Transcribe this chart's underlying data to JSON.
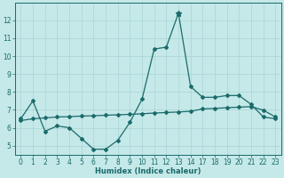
{
  "xlabel": "Humidex (Indice chaleur)",
  "bg_color": "#c5e8e8",
  "line_color": "#1a6b6b",
  "x_labels": [
    0,
    1,
    2,
    3,
    4,
    5,
    6,
    7,
    8,
    9,
    10,
    11,
    12,
    13,
    14,
    17,
    18,
    19,
    20,
    21,
    22,
    23
  ],
  "y_main": [
    6.5,
    7.5,
    5.8,
    6.1,
    6.0,
    5.4,
    4.8,
    4.8,
    5.3,
    6.3,
    7.6,
    10.4,
    10.5,
    12.4,
    8.3,
    7.7,
    7.7,
    7.8,
    7.8,
    7.3,
    6.6,
    6.5
  ],
  "y_trend": [
    6.4,
    6.5,
    6.55,
    6.6,
    6.62,
    6.65,
    6.67,
    6.7,
    6.72,
    6.75,
    6.78,
    6.82,
    6.85,
    6.88,
    6.92,
    7.05,
    7.08,
    7.12,
    7.15,
    7.18,
    6.98,
    6.6
  ],
  "peak_idx": 13,
  "xlim": [
    -0.5,
    21.5
  ],
  "ylim": [
    4.5,
    13.0
  ],
  "yticks": [
    5,
    6,
    7,
    8,
    9,
    10,
    11,
    12
  ],
  "grid_color": "#aad4d4",
  "marker": "D",
  "markersize": 2.0,
  "linewidth": 0.9,
  "tick_fontsize": 5.5,
  "xlabel_fontsize": 6.0
}
